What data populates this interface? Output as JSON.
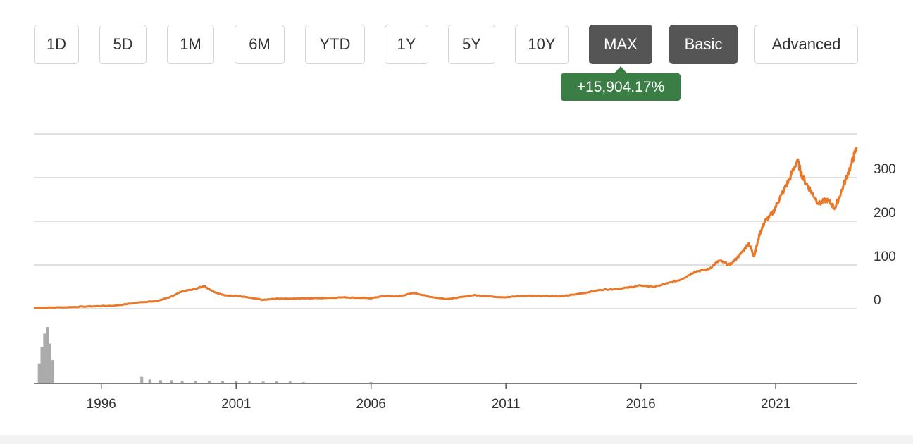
{
  "range_buttons": [
    {
      "label": "1D",
      "active": false
    },
    {
      "label": "5D",
      "active": false
    },
    {
      "label": "1M",
      "active": false
    },
    {
      "label": "6M",
      "active": false
    },
    {
      "label": "YTD",
      "active": false
    },
    {
      "label": "1Y",
      "active": false
    },
    {
      "label": "5Y",
      "active": false
    },
    {
      "label": "10Y",
      "active": false
    },
    {
      "label": "MAX",
      "active": true
    }
  ],
  "view_buttons": [
    {
      "label": "Basic",
      "active": true
    },
    {
      "label": "Advanced",
      "active": false
    }
  ],
  "change_badge": {
    "text": "+15,904.17%",
    "color": "#3a7d45"
  },
  "chart_data": {
    "type": "line",
    "x_ticks": [
      "1996",
      "2001",
      "2006",
      "2011",
      "2016",
      "2021"
    ],
    "y_ticks": [
      "0",
      "100",
      "200",
      "300"
    ],
    "ylim": [
      0,
      400
    ],
    "xlim": [
      1993.5,
      2024.0
    ],
    "grid": true,
    "line_color": "#e8782a",
    "volume_color": "#aaaaaa",
    "series": [
      {
        "x": [
          1993.5,
          1994.5,
          1995.5,
          1996.5,
          1997.5,
          1998.0,
          1998.5,
          1999.0,
          1999.5,
          1999.8,
          2000.2,
          2000.6,
          2001.0,
          2001.5,
          2002.0,
          2002.5,
          2003.0,
          2004.0,
          2005.0,
          2005.5,
          2006.0,
          2006.5,
          2007.0,
          2007.6,
          2008.2,
          2008.8,
          2009.2,
          2009.8,
          2010.4,
          2011.0,
          2011.8,
          2012.5,
          2013.0,
          2013.5,
          2014.0,
          2014.5,
          2015.0,
          2015.5,
          2016.0,
          2016.5,
          2017.0,
          2017.5,
          2018.0,
          2018.5,
          2018.9,
          2019.3,
          2019.7,
          2020.0,
          2020.2,
          2020.4,
          2020.6,
          2020.9,
          2021.2,
          2021.5,
          2021.8,
          2022.0,
          2022.3,
          2022.6,
          2022.9,
          2023.2,
          2023.5,
          2023.8,
          2024.0
        ],
        "y": [
          2,
          3,
          5,
          7,
          15,
          17,
          25,
          40,
          45,
          52,
          38,
          30,
          30,
          25,
          20,
          23,
          23,
          24,
          26,
          25,
          24,
          29,
          28,
          36,
          27,
          22,
          25,
          31,
          28,
          26,
          30,
          29,
          28,
          32,
          37,
          43,
          45,
          48,
          53,
          50,
          58,
          67,
          85,
          90,
          110,
          100,
          125,
          150,
          120,
          170,
          200,
          220,
          260,
          295,
          340,
          300,
          270,
          240,
          250,
          230,
          280,
          330,
          370
        ]
      }
    ],
    "volume": {
      "x": [
        1993.7,
        1993.8,
        1993.9,
        1994.0,
        1994.1,
        1994.2,
        1997.5,
        1997.8,
        1998.2,
        1998.6,
        1999.0,
        1999.5,
        2000.0,
        2000.5,
        2001.0,
        2001.5,
        2002.0,
        2002.5,
        2003.0,
        2003.5,
        2006.0,
        2007.5,
        2009.0
      ],
      "y": [
        30,
        55,
        75,
        85,
        60,
        35,
        10,
        6,
        5,
        5,
        4,
        4,
        4,
        4,
        4,
        3,
        3,
        3,
        3,
        2,
        2,
        1,
        1
      ]
    }
  }
}
